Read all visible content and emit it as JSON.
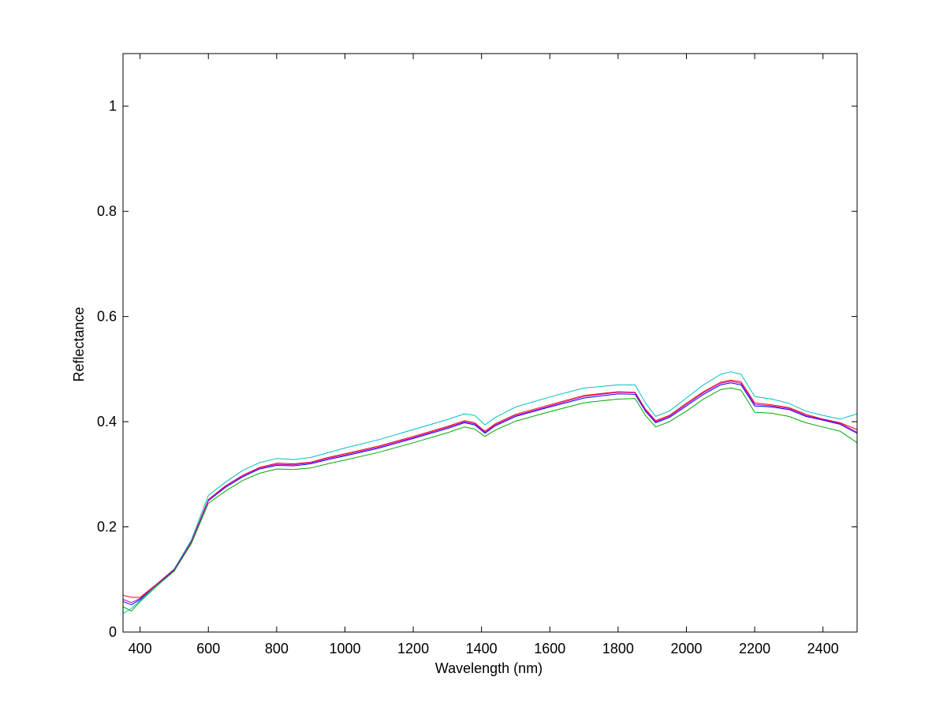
{
  "chart_data": {
    "type": "line",
    "title": "",
    "xlabel": "Wavelength (nm)",
    "ylabel": "Reflectance",
    "xlim": [
      350,
      2500
    ],
    "ylim": [
      0,
      1.1
    ],
    "x_ticks": [
      400,
      600,
      800,
      1000,
      1200,
      1400,
      1600,
      1800,
      2000,
      2200,
      2400
    ],
    "y_ticks": [
      0,
      0.2,
      0.4,
      0.6,
      0.8,
      1
    ],
    "y_tick_labels": [
      "0",
      "0.2",
      "0.4",
      "0.6",
      "0.8",
      "1"
    ],
    "grid": false,
    "legend": "none",
    "x": [
      350,
      375,
      400,
      450,
      500,
      550,
      600,
      650,
      700,
      750,
      800,
      850,
      900,
      950,
      1000,
      1100,
      1200,
      1300,
      1350,
      1380,
      1410,
      1440,
      1500,
      1600,
      1700,
      1800,
      1850,
      1880,
      1910,
      1950,
      2000,
      2050,
      2100,
      2130,
      2160,
      2200,
      2250,
      2300,
      2350,
      2400,
      2450,
      2500
    ],
    "series": [
      {
        "color": "#0000ff",
        "values": [
          0.058,
          0.052,
          0.062,
          0.09,
          0.118,
          0.17,
          0.25,
          0.275,
          0.295,
          0.31,
          0.317,
          0.316,
          0.32,
          0.328,
          0.335,
          0.35,
          0.368,
          0.387,
          0.398,
          0.394,
          0.378,
          0.392,
          0.41,
          0.428,
          0.445,
          0.453,
          0.452,
          0.42,
          0.398,
          0.408,
          0.43,
          0.452,
          0.47,
          0.474,
          0.47,
          0.43,
          0.428,
          0.423,
          0.41,
          0.403,
          0.395,
          0.378
        ]
      },
      {
        "color": "#00aa00",
        "values": [
          0.048,
          0.04,
          0.058,
          0.088,
          0.116,
          0.168,
          0.245,
          0.268,
          0.288,
          0.302,
          0.31,
          0.309,
          0.312,
          0.32,
          0.327,
          0.342,
          0.36,
          0.379,
          0.39,
          0.386,
          0.372,
          0.384,
          0.401,
          0.419,
          0.436,
          0.443,
          0.444,
          0.412,
          0.39,
          0.4,
          0.42,
          0.443,
          0.461,
          0.464,
          0.46,
          0.418,
          0.416,
          0.41,
          0.398,
          0.39,
          0.382,
          0.36
        ]
      },
      {
        "color": "#ff0000",
        "values": [
          0.07,
          0.066,
          0.066,
          0.092,
          0.12,
          0.172,
          0.252,
          0.278,
          0.298,
          0.313,
          0.321,
          0.32,
          0.323,
          0.332,
          0.339,
          0.354,
          0.372,
          0.391,
          0.402,
          0.398,
          0.382,
          0.396,
          0.414,
          0.432,
          0.45,
          0.457,
          0.456,
          0.424,
          0.402,
          0.412,
          0.435,
          0.457,
          0.475,
          0.479,
          0.476,
          0.436,
          0.432,
          0.427,
          0.414,
          0.405,
          0.398,
          0.385
        ]
      },
      {
        "color": "#00bfbf",
        "values": [
          0.035,
          0.045,
          0.06,
          0.09,
          0.12,
          0.175,
          0.26,
          0.285,
          0.307,
          0.322,
          0.33,
          0.328,
          0.332,
          0.341,
          0.35,
          0.366,
          0.385,
          0.404,
          0.415,
          0.412,
          0.394,
          0.408,
          0.428,
          0.447,
          0.464,
          0.47,
          0.47,
          0.436,
          0.41,
          0.42,
          0.445,
          0.47,
          0.49,
          0.495,
          0.49,
          0.448,
          0.443,
          0.435,
          0.42,
          0.412,
          0.405,
          0.415
        ]
      },
      {
        "color": "#bf00bf",
        "values": [
          0.062,
          0.056,
          0.064,
          0.091,
          0.119,
          0.171,
          0.251,
          0.277,
          0.297,
          0.312,
          0.319,
          0.318,
          0.322,
          0.33,
          0.337,
          0.352,
          0.37,
          0.389,
          0.4,
          0.396,
          0.38,
          0.394,
          0.412,
          0.43,
          0.448,
          0.456,
          0.455,
          0.422,
          0.4,
          0.41,
          0.433,
          0.455,
          0.473,
          0.477,
          0.473,
          0.433,
          0.43,
          0.425,
          0.412,
          0.404,
          0.397,
          0.38
        ]
      }
    ]
  }
}
